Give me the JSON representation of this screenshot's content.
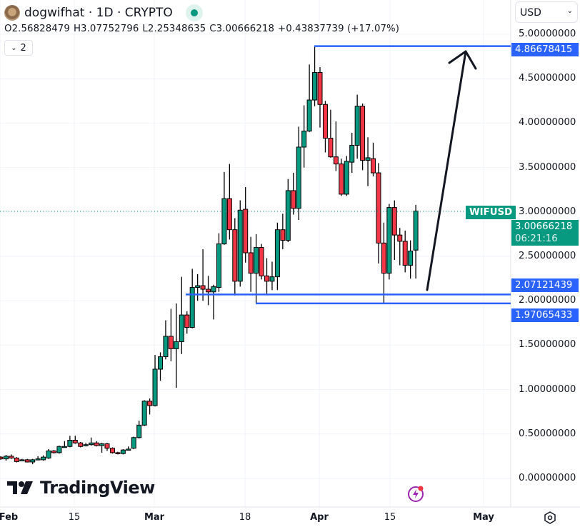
{
  "header": {
    "title": "dogwifhat · 1D · CRYPTO",
    "ohlc": {
      "open": "O2.56828479",
      "high": "H3.07752796",
      "low": "L2.25348635",
      "close": "C3.00666218",
      "change": "+0.43837739 (+17.07%)"
    },
    "collapse_count": "2",
    "currency": "USD"
  },
  "price_axis": [
    "5.00000000",
    "4.50000000",
    "4.00000000",
    "3.50000000",
    "3.00000000",
    "2.50000000",
    "2.00000000",
    "1.50000000",
    "1.00000000",
    "0.50000000",
    "0.00000000"
  ],
  "time_axis": [
    "Feb",
    "15",
    "Mar",
    "18",
    "Apr",
    "15",
    "May"
  ],
  "symbol_tag": {
    "symbol": "WIFUSD",
    "price": "3.00666218",
    "countdown": "06:21:16"
  },
  "drawn_levels": [
    "4.86678415",
    "2.07121439",
    "1.97065433"
  ],
  "colors": {
    "up": "#089981",
    "down": "#f23645",
    "level": "#2962ff",
    "grid": "#f0f3fa"
  },
  "branding": "TradingView",
  "icons": [
    "avatar-icon",
    "live-status-icon",
    "chevron-down-icon",
    "lightning-icon",
    "settings-gear-icon"
  ],
  "chart_data": {
    "type": "candlestick",
    "symbol": "WIFUSD",
    "interval": "1D",
    "start_date": "Feb 1",
    "ylim": [
      0,
      5
    ],
    "columns": [
      "open",
      "high",
      "low",
      "close"
    ],
    "candles": [
      [
        0.24,
        0.25,
        0.21,
        0.22
      ],
      [
        0.22,
        0.265,
        0.2,
        0.25
      ],
      [
        0.25,
        0.27,
        0.22,
        0.23
      ],
      [
        0.23,
        0.24,
        0.18,
        0.19
      ],
      [
        0.21,
        0.22,
        0.2,
        0.21
      ],
      [
        0.21,
        0.22,
        0.18,
        0.185
      ],
      [
        0.185,
        0.22,
        0.16,
        0.21
      ],
      [
        0.21,
        0.25,
        0.21,
        0.22
      ],
      [
        0.21,
        0.26,
        0.2,
        0.24
      ],
      [
        0.23,
        0.33,
        0.22,
        0.31
      ],
      [
        0.31,
        0.32,
        0.28,
        0.29
      ],
      [
        0.29,
        0.37,
        0.28,
        0.36
      ],
      [
        0.36,
        0.42,
        0.36,
        0.36
      ],
      [
        0.36,
        0.48,
        0.35,
        0.43
      ],
      [
        0.43,
        0.48,
        0.39,
        0.4
      ],
      [
        0.4,
        0.41,
        0.35,
        0.36
      ],
      [
        0.37,
        0.4,
        0.36,
        0.38
      ],
      [
        0.38,
        0.46,
        0.37,
        0.4
      ],
      [
        0.4,
        0.42,
        0.36,
        0.37
      ],
      [
        0.37,
        0.4,
        0.29,
        0.39
      ],
      [
        0.39,
        0.4,
        0.31,
        0.34
      ],
      [
        0.34,
        0.35,
        0.28,
        0.29
      ],
      [
        0.29,
        0.3,
        0.27,
        0.28
      ],
      [
        0.28,
        0.33,
        0.27,
        0.32
      ],
      [
        0.33,
        0.36,
        0.32,
        0.33
      ],
      [
        0.34,
        0.47,
        0.33,
        0.46
      ],
      [
        0.46,
        0.65,
        0.45,
        0.6
      ],
      [
        0.6,
        0.88,
        0.59,
        0.87
      ],
      [
        0.87,
        0.9,
        0.72,
        0.82
      ],
      [
        0.82,
        1.39,
        0.81,
        1.23
      ],
      [
        1.23,
        1.42,
        1.1,
        1.37
      ],
      [
        1.37,
        1.78,
        1.34,
        1.6
      ],
      [
        1.6,
        1.91,
        1.32,
        1.46
      ],
      [
        1.46,
        1.97,
        1.02,
        1.54
      ],
      [
        1.54,
        2.27,
        1.4,
        1.84
      ],
      [
        1.84,
        1.88,
        1.63,
        1.7
      ],
      [
        1.7,
        2.36,
        1.69,
        2.15
      ],
      [
        2.15,
        2.3,
        2.0,
        2.17
      ],
      [
        2.17,
        2.58,
        2.0,
        2.13
      ],
      [
        2.13,
        2.28,
        1.95,
        2.1
      ],
      [
        2.1,
        2.18,
        1.79,
        2.16
      ],
      [
        2.15,
        2.76,
        2.1,
        2.64
      ],
      [
        2.64,
        3.45,
        2.63,
        3.15
      ],
      [
        3.15,
        3.54,
        2.69,
        2.8
      ],
      [
        2.8,
        2.93,
        2.06,
        2.22
      ],
      [
        2.22,
        3.13,
        2.16,
        3.02
      ],
      [
        3.03,
        3.28,
        2.43,
        2.54
      ],
      [
        2.54,
        2.72,
        2.1,
        2.31
      ],
      [
        2.31,
        2.75,
        1.97,
        2.6
      ],
      [
        2.6,
        2.64,
        2.24,
        2.28
      ],
      [
        2.28,
        2.48,
        2.08,
        2.22
      ],
      [
        2.22,
        2.44,
        2.12,
        2.27
      ],
      [
        2.27,
        2.88,
        2.12,
        2.8
      ],
      [
        2.8,
        2.98,
        2.58,
        2.68
      ],
      [
        2.68,
        3.37,
        2.66,
        3.24
      ],
      [
        3.24,
        3.44,
        2.97,
        3.04
      ],
      [
        3.04,
        3.96,
        2.91,
        3.73
      ],
      [
        3.73,
        4.2,
        3.5,
        3.91
      ],
      [
        3.91,
        4.66,
        3.9,
        4.26
      ],
      [
        4.26,
        4.87,
        4.19,
        4.57
      ],
      [
        4.57,
        4.63,
        3.95,
        4.21
      ],
      [
        4.21,
        4.25,
        3.67,
        3.83
      ],
      [
        3.83,
        4.15,
        3.61,
        3.62
      ],
      [
        3.62,
        4.02,
        3.46,
        3.54
      ],
      [
        3.54,
        3.6,
        3.18,
        3.2
      ],
      [
        3.2,
        3.63,
        3.18,
        3.57
      ],
      [
        3.56,
        3.89,
        3.44,
        3.75
      ],
      [
        3.75,
        4.32,
        3.6,
        4.19
      ],
      [
        4.19,
        4.22,
        3.47,
        3.58
      ],
      [
        3.58,
        3.84,
        3.29,
        3.61
      ],
      [
        3.6,
        3.78,
        3.4,
        3.44
      ],
      [
        3.44,
        3.55,
        2.42,
        2.65
      ],
      [
        2.65,
        2.88,
        1.97,
        2.31
      ],
      [
        2.31,
        3.09,
        2.24,
        3.05
      ],
      [
        3.05,
        3.13,
        2.46,
        2.74
      ],
      [
        2.74,
        2.82,
        2.4,
        2.67
      ],
      [
        2.67,
        2.79,
        2.32,
        2.4
      ],
      [
        2.4,
        2.68,
        2.25,
        2.56
      ],
      [
        2.57,
        3.08,
        2.25,
        3.01
      ]
    ]
  }
}
